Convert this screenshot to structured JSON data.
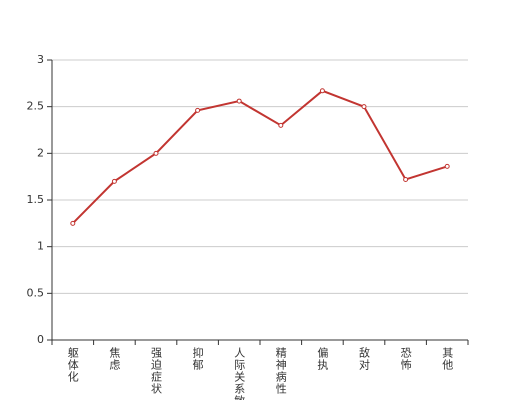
{
  "chart_data": {
    "type": "line",
    "categories": [
      "躯体化",
      "焦虑",
      "强迫症状",
      "抑郁",
      "人际关系敏感",
      "精神病性",
      "偏执",
      "敌对",
      "恐怖",
      "其他"
    ],
    "series": [
      {
        "color": "#c23531",
        "values": [
          1.25,
          1.7,
          2.0,
          2.46,
          2.56,
          2.3,
          2.67,
          2.5,
          1.72,
          1.86
        ]
      }
    ],
    "ylim": [
      0,
      3
    ],
    "yticks": [
      0,
      0.5,
      1,
      1.5,
      2,
      2.5,
      3
    ],
    "grid": true
  }
}
